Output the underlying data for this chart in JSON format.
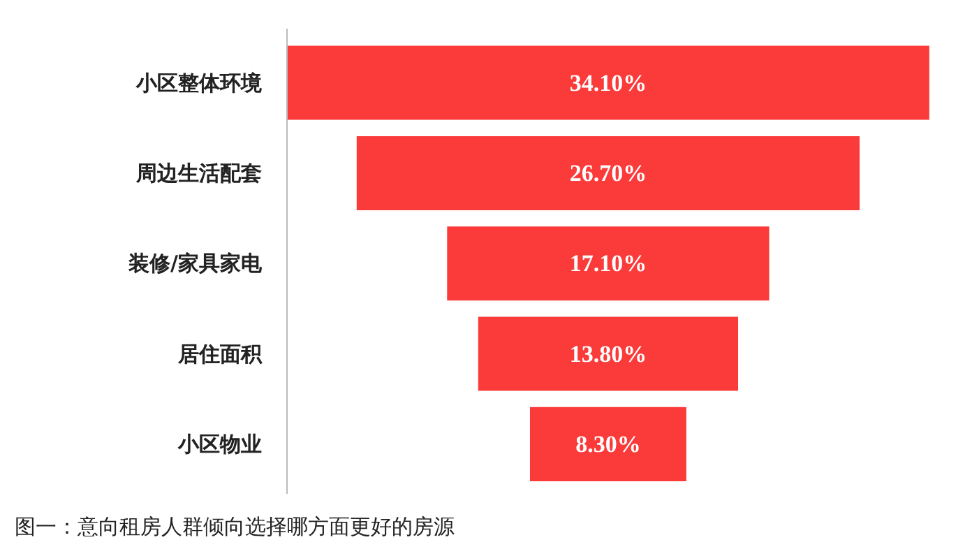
{
  "chart_data": {
    "type": "other",
    "categories": [
      "小区整体环境",
      "周边生活配套",
      "装修/家具家电",
      "居住面积",
      "小区物业"
    ],
    "values": [
      34.1,
      26.7,
      17.1,
      13.8,
      8.3
    ],
    "value_labels": [
      "34.10%",
      "26.70%",
      "17.10%",
      "13.80%",
      "8.30%"
    ],
    "color": "#fb3a3a",
    "annotations": [
      "图一：意向租房人群倾向选择哪方面更好的房源"
    ]
  }
}
